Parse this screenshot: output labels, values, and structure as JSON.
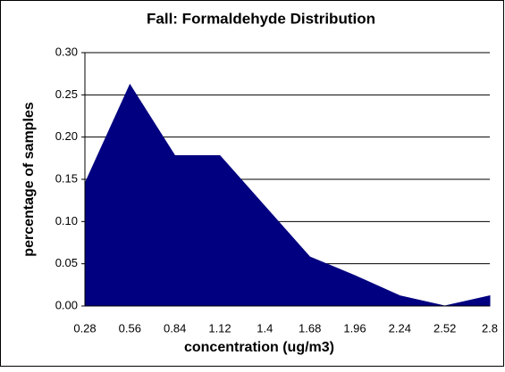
{
  "chart_data": {
    "type": "area",
    "title": "Fall: Formaldehyde Distribution",
    "x_label": "concentration (ug/m3)",
    "y_label": "percentage of samples",
    "categories": [
      "0.28",
      "0.56",
      "0.84",
      "1.12",
      "1.4",
      "1.68",
      "1.96",
      "2.24",
      "2.52",
      "2.8"
    ],
    "values": [
      0.145,
      0.262,
      0.178,
      0.178,
      0.118,
      0.058,
      0.036,
      0.012,
      0.0,
      0.012
    ],
    "color": "#000080",
    "ylim": [
      0,
      0.3
    ],
    "yticks": [
      {
        "value": 0,
        "label": "0.00"
      },
      {
        "value": 0.05,
        "label": "0.05"
      },
      {
        "value": 0.1,
        "label": "0.10"
      },
      {
        "value": 0.15,
        "label": "0.15"
      },
      {
        "value": 0.2,
        "label": "0.20"
      },
      {
        "value": 0.25,
        "label": "0.25"
      },
      {
        "value": 0.3,
        "label": "0.30"
      }
    ],
    "grid": true
  }
}
